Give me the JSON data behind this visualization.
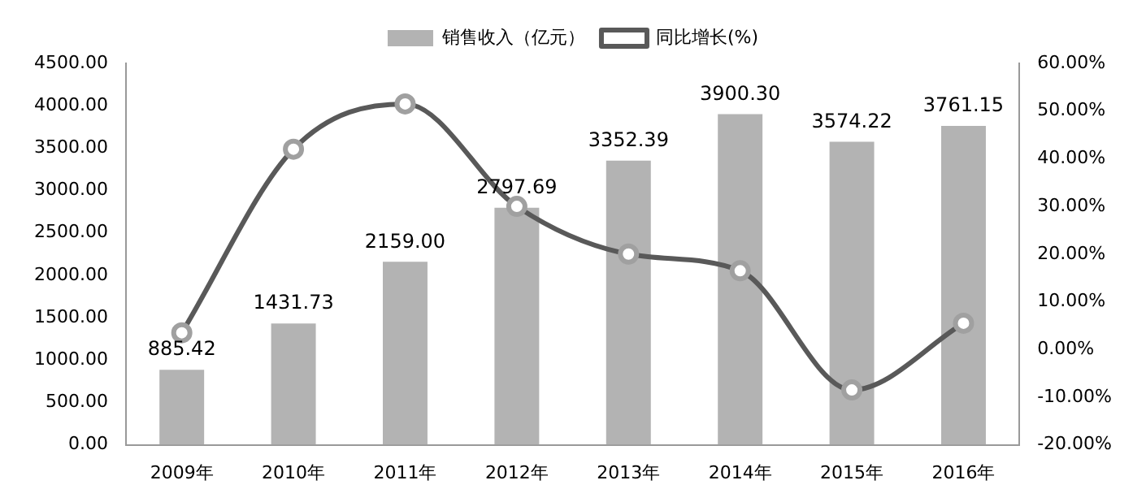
{
  "chart_data": {
    "type": "bar",
    "categories": [
      "2009年",
      "2010年",
      "2011年",
      "2012年",
      "2013年",
      "2014年",
      "2015年",
      "2016年"
    ],
    "series": [
      {
        "name": "销售收入（亿元）",
        "color": "#b3b3b3",
        "values": [
          885.42,
          1431.73,
          2159.0,
          2797.69,
          3352.39,
          3900.3,
          3574.22,
          3761.15
        ],
        "value_labels": [
          "885.42",
          "1431.73",
          "2159.00",
          "2797.69",
          "3352.39",
          "3900.30",
          "3574.22",
          "3761.15"
        ]
      },
      {
        "name": "同比增长(%)",
        "type": "line",
        "axis": "y2",
        "color": "#595959",
        "values": [
          3.5,
          42,
          51.5,
          30,
          20,
          16.5,
          -8.5,
          5.5
        ]
      }
    ],
    "ylim": [
      0,
      4500
    ],
    "yticks": [
      {
        "value": 0,
        "label": "0.00"
      },
      {
        "value": 500,
        "label": "500.00"
      },
      {
        "value": 1000,
        "label": "1000.00"
      },
      {
        "value": 1500,
        "label": "1500.00"
      },
      {
        "value": 2000,
        "label": "2000.00"
      },
      {
        "value": 2500,
        "label": "2500.00"
      },
      {
        "value": 3000,
        "label": "3000.00"
      },
      {
        "value": 3500,
        "label": "3500.00"
      },
      {
        "value": 4000,
        "label": "4000.00"
      },
      {
        "value": 4500,
        "label": "4500.00"
      }
    ],
    "y2lim": [
      -20,
      60
    ],
    "y2ticks": [
      {
        "value": -20,
        "label": "-20.00%"
      },
      {
        "value": -10,
        "label": "-10.00%"
      },
      {
        "value": 0,
        "label": "0.00%"
      },
      {
        "value": 10,
        "label": "10.00%"
      },
      {
        "value": 20,
        "label": "20.00%"
      },
      {
        "value": 30,
        "label": "30.00%"
      },
      {
        "value": 40,
        "label": "40.00%"
      },
      {
        "value": 50,
        "label": "50.00%"
      },
      {
        "value": 60,
        "label": "60.00%"
      }
    ],
    "grid": false,
    "legend": "top",
    "marker": "circle",
    "line_style": "solid"
  }
}
